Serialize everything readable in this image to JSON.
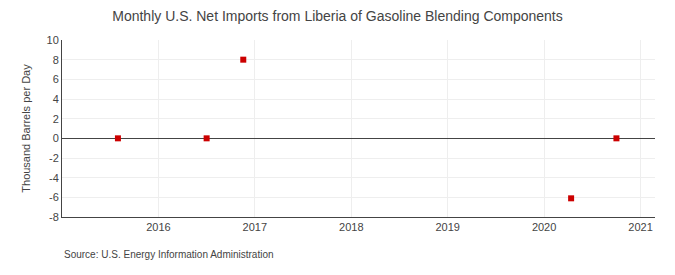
{
  "chart_data": {
    "type": "scatter",
    "title": "Monthly U.S. Net Imports from Liberia of Gasoline Blending Components",
    "ylabel": "Thousand Barrels per Day",
    "source": "Source: U.S. Energy Information Administration",
    "x": [
      2015.58,
      2016.5,
      2016.88,
      2020.28,
      2020.75
    ],
    "values": [
      0.0,
      0.0,
      8.0,
      -6.1,
      0.0
    ],
    "color": "#cc0000",
    "marker": "square",
    "xlim": [
      2015.0,
      2021.15
    ],
    "ylim": [
      -8,
      10
    ],
    "xticks": [
      2016,
      2017,
      2018,
      2019,
      2020,
      2021
    ],
    "yticks": [
      -8,
      -6,
      -4,
      -2,
      0,
      2,
      4,
      6,
      8,
      10
    ],
    "grid": true
  }
}
